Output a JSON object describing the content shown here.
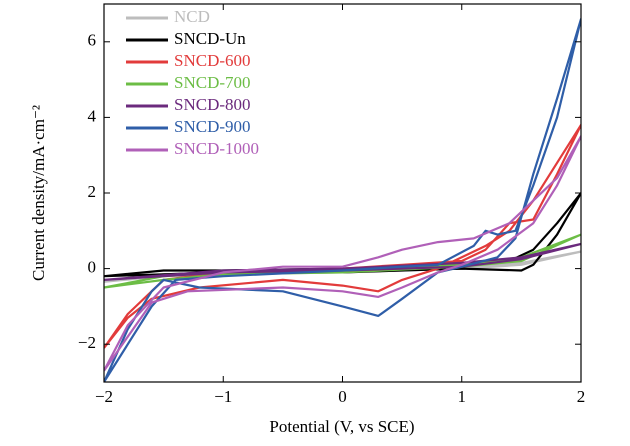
{
  "chart_data": {
    "type": "line",
    "xlabel": "Potential (V, vs SCE)",
    "ylabel": "Current density/mA·cm⁻²",
    "xlim": [
      -2,
      2
    ],
    "ylim": [
      -3,
      7
    ],
    "xticks": [
      {
        "value": -2,
        "label": "−2"
      },
      {
        "value": -1,
        "label": "−1"
      },
      0,
      1,
      2
    ],
    "yticks": [
      {
        "value": -2,
        "label": "−2"
      },
      0,
      2,
      4,
      6
    ],
    "legend": "upper-left",
    "series": [
      {
        "name": "NCD",
        "color": "#bdbdbd",
        "x": [
          -2,
          -1.5,
          -1,
          0,
          1,
          1.5,
          2,
          1.5,
          1,
          0,
          -1,
          -1.5,
          -2
        ],
        "values": [
          -0.35,
          -0.15,
          -0.1,
          -0.05,
          0.05,
          0.15,
          0.45,
          0.1,
          0,
          -0.1,
          -0.15,
          -0.2,
          -0.35
        ]
      },
      {
        "name": "SNCD-Un",
        "color": "#000000",
        "x": [
          -2,
          -1.5,
          -1,
          0,
          1,
          1.4,
          1.6,
          1.8,
          2,
          1.8,
          1.6,
          1.5,
          1,
          0,
          -1,
          -1.5,
          -2
        ],
        "values": [
          -0.2,
          -0.05,
          -0.05,
          0,
          0.1,
          0.2,
          0.5,
          1.2,
          2.0,
          0.9,
          0.1,
          -0.05,
          0,
          -0.1,
          -0.1,
          -0.15,
          -0.2
        ]
      },
      {
        "name": "SNCD-600",
        "color": "#e23b3b",
        "x": [
          -2,
          -1.8,
          -1.6,
          -1.2,
          -0.5,
          0,
          0.3,
          0.5,
          0.8,
          1.2,
          1.4,
          1.6,
          1.8,
          2,
          1.8,
          1.6,
          1.4,
          1.2,
          1,
          0.5,
          0,
          -0.5,
          -1,
          -1.5,
          -1.8,
          -2
        ],
        "values": [
          -2.1,
          -1.3,
          -0.8,
          -0.5,
          -0.3,
          -0.45,
          -0.6,
          -0.3,
          0,
          0.6,
          1.0,
          1.8,
          2.8,
          3.8,
          2.5,
          1.3,
          1.2,
          0.5,
          0.2,
          0.1,
          0,
          -0.05,
          -0.1,
          -0.3,
          -1.2,
          -2.1
        ]
      },
      {
        "name": "SNCD-700",
        "color": "#6cbd45",
        "x": [
          -2,
          -1.5,
          -1,
          0,
          1,
          1.5,
          2,
          1.5,
          1,
          0,
          -1,
          -1.5,
          -2
        ],
        "values": [
          -0.5,
          -0.2,
          -0.1,
          -0.05,
          0.1,
          0.3,
          0.9,
          0.2,
          0.05,
          -0.1,
          -0.15,
          -0.3,
          -0.5
        ]
      },
      {
        "name": "SNCD-800",
        "color": "#6b2a7d",
        "x": [
          -2,
          -1,
          0,
          1,
          1.5,
          2,
          1.5,
          1,
          0,
          -1,
          -2
        ],
        "values": [
          -0.3,
          -0.05,
          0,
          0.15,
          0.3,
          0.65,
          0.25,
          0.05,
          -0.05,
          -0.1,
          -0.3
        ]
      },
      {
        "name": "SNCD-900",
        "color": "#2f5ea8",
        "x": [
          -2,
          -1.8,
          -1.6,
          -1.5,
          -1.2,
          -0.5,
          0,
          0.3,
          0.5,
          0.8,
          1,
          1.3,
          1.45,
          1.6,
          1.8,
          2,
          1.8,
          1.6,
          1.45,
          1.3,
          1.2,
          1.1,
          0.8,
          0.5,
          0,
          -1,
          -1.4,
          -1.6,
          -1.8,
          -2
        ],
        "values": [
          -3,
          -1.6,
          -0.6,
          -0.3,
          -0.5,
          -0.6,
          -1.0,
          -1.25,
          -0.8,
          -0.1,
          0.05,
          0.3,
          0.8,
          2.5,
          4.5,
          6.6,
          4.0,
          2.2,
          1.0,
          0.9,
          1.0,
          0.6,
          0.1,
          0.05,
          -0.05,
          -0.2,
          -0.3,
          -1.0,
          -2.0,
          -3
        ]
      },
      {
        "name": "SNCD-1000",
        "color": "#b060b8",
        "x": [
          -2,
          -1.8,
          -1.6,
          -1.3,
          -0.5,
          0,
          0.3,
          0.5,
          0.8,
          1,
          1.3,
          1.6,
          1.8,
          2,
          1.8,
          1.6,
          1.4,
          1.1,
          0.8,
          0.5,
          0.3,
          0,
          -0.5,
          -1,
          -1.5,
          -1.8,
          -2
        ],
        "values": [
          -2.7,
          -1.8,
          -0.9,
          -0.6,
          -0.5,
          -0.6,
          -0.75,
          -0.5,
          -0.1,
          0.1,
          0.5,
          1.2,
          2.2,
          3.5,
          2.4,
          1.8,
          1.2,
          0.8,
          0.7,
          0.5,
          0.3,
          0.05,
          0.05,
          -0.1,
          -0.5,
          -1.5,
          -2.7
        ]
      }
    ]
  }
}
